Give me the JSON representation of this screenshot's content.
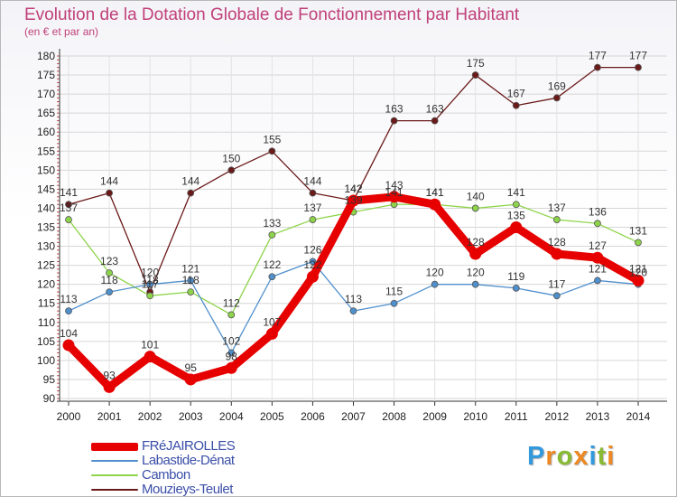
{
  "chart_data": {
    "type": "line",
    "title": "Evolution de la Dotation Globale de Fonctionnement par Habitant",
    "subtitle": "(en € et par an)",
    "xlabel": "",
    "ylabel": "",
    "categories": [
      "2000",
      "2001",
      "2002",
      "2003",
      "2004",
      "2005",
      "2006",
      "2007",
      "2008",
      "2009",
      "2010",
      "2011",
      "2012",
      "2013",
      "2014"
    ],
    "ylim": [
      90,
      180
    ],
    "yticks": [
      90,
      95,
      100,
      105,
      110,
      115,
      120,
      125,
      130,
      135,
      140,
      145,
      150,
      155,
      160,
      165,
      170,
      175,
      180
    ],
    "legend_position": "bottom-left",
    "series": [
      {
        "name": "FRéJAIROLLES",
        "color": "#e60000",
        "values": [
          104,
          93,
          101,
          95,
          98,
          107,
          122,
          142,
          143,
          141,
          128,
          135,
          128,
          127,
          121
        ]
      },
      {
        "name": "Labastide-Dénat",
        "color": "#4f8fcc",
        "values": [
          113,
          118,
          120,
          121,
          102,
          122,
          126,
          113,
          115,
          120,
          120,
          119,
          117,
          121,
          120
        ]
      },
      {
        "name": "Cambon",
        "color": "#8ed44a",
        "values": [
          137,
          123,
          117,
          118,
          112,
          133,
          137,
          139,
          141,
          141,
          140,
          141,
          137,
          136,
          131
        ]
      },
      {
        "name": "Mouzieys-Teulet",
        "color": "#6b1a1a",
        "values": [
          141,
          144,
          118,
          144,
          150,
          155,
          144,
          142,
          163,
          163,
          175,
          167,
          169,
          177,
          177
        ]
      }
    ]
  },
  "logo": {
    "letters": [
      "P",
      "r",
      "o",
      "x",
      "i",
      "t",
      "i"
    ],
    "colors": [
      "#3399dd",
      "#ee8822",
      "#88bb33",
      "#ee8822",
      "#3399dd",
      "#88bb33",
      "#ee8822"
    ]
  }
}
